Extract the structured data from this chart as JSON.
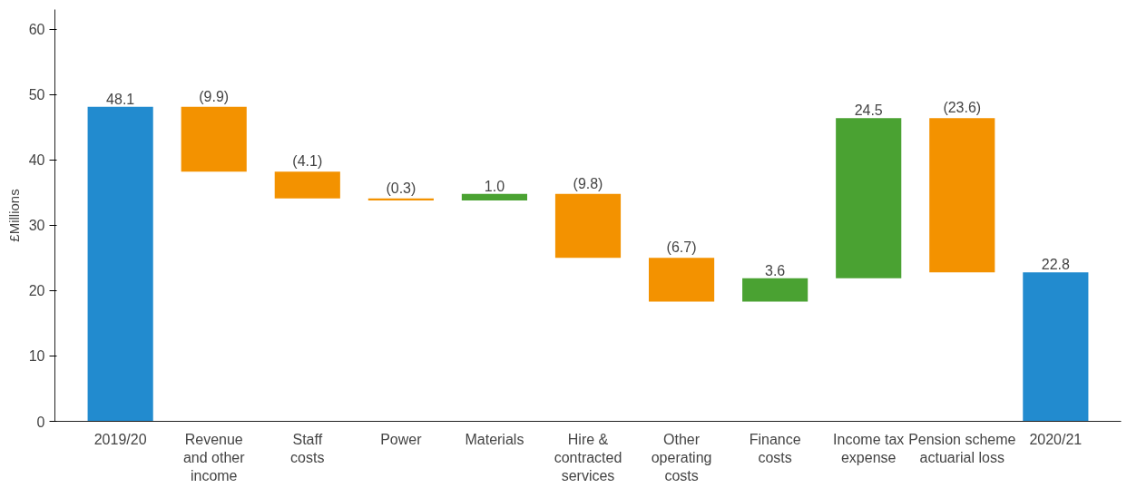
{
  "chart_data": {
    "type": "bar",
    "ylabel": "£Millions",
    "categories": [
      "2019/20",
      "Revenue and other income",
      "Staff costs",
      "Power",
      "Materials",
      "Hire & contracted services",
      "Other operating costs",
      "Finance costs",
      "Income tax expense",
      "Pension scheme actuarial loss",
      "2020/21"
    ],
    "values": [
      48.1,
      -9.9,
      -4.1,
      -0.3,
      1.0,
      -9.8,
      -6.7,
      3.6,
      24.5,
      -23.6,
      22.8
    ],
    "base": [
      0,
      48.1,
      38.2,
      34.1,
      33.8,
      34.8,
      25.0,
      18.3,
      21.9,
      46.4,
      0
    ],
    "colors": [
      "#228bcf",
      "#f39200",
      "#f39200",
      "#f39200",
      "#4aa232",
      "#f39200",
      "#f39200",
      "#4aa232",
      "#4aa232",
      "#f39200",
      "#228bcf"
    ],
    "value_labels": [
      "48.1",
      "(9.9)",
      "(4.1)",
      "(0.3)",
      "1.0",
      "(9.8)",
      "(6.7)",
      "3.6",
      "24.5",
      "(23.6)",
      "22.8"
    ],
    "ylim": [
      0,
      63
    ],
    "yticks": [
      0,
      10,
      20,
      30,
      40,
      50,
      60
    ],
    "grid": false
  }
}
